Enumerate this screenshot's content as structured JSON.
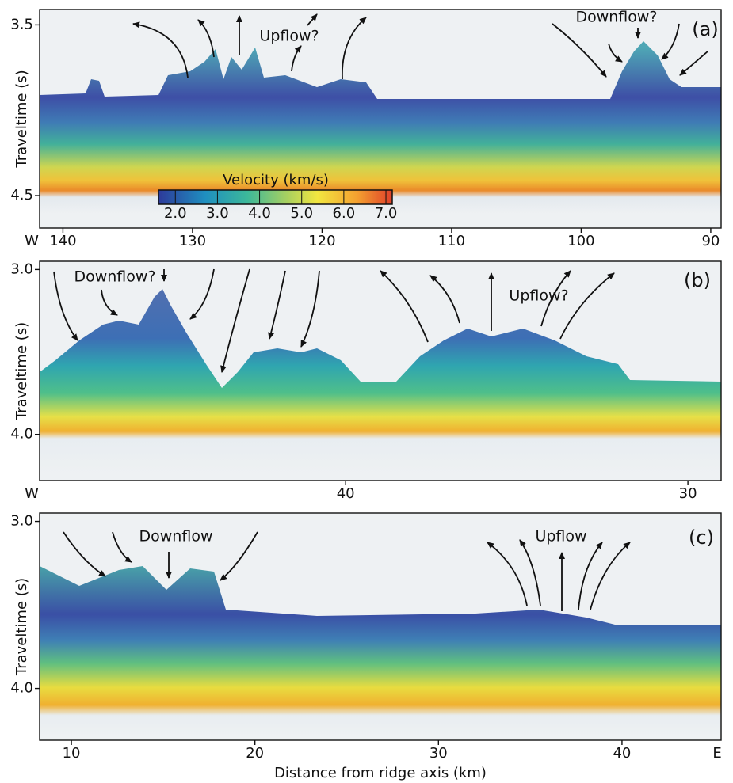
{
  "chart_data": [
    {
      "type": "seismic-section",
      "panel_label": "(a)",
      "y_label": "Traveltime (s)",
      "x_left_label": "W",
      "xlim": [
        141.8,
        89.2
      ],
      "xticks": [
        140,
        130,
        120,
        110,
        100,
        90
      ],
      "ylim": [
        3.41,
        4.69
      ],
      "y_reversed": true,
      "yticks": [
        3.5,
        4.5
      ],
      "annotations": [
        "Upflow?",
        "Downflow?"
      ],
      "colorbar": {
        "title": "Velocity (km/s)",
        "clim": [
          1.6,
          7.15
        ],
        "ticks": [
          {
            "value": 2,
            "label": "2.0"
          },
          {
            "value": 3,
            "label": "3.0"
          },
          {
            "value": 4,
            "label": "4.0"
          },
          {
            "value": 5,
            "label": "5.0"
          },
          {
            "value": 6,
            "label": "6.0"
          },
          {
            "value": 7,
            "label": "7.0"
          }
        ]
      }
    },
    {
      "type": "seismic-section",
      "panel_label": "(b)",
      "y_label": "Traveltime (s)",
      "x_left_label": "W",
      "xlim": [
        48.94,
        29.03
      ],
      "xticks": [
        40,
        30
      ],
      "ylim": [
        2.95,
        4.28
      ],
      "y_reversed": true,
      "yticks": [
        {
          "value": 3,
          "label": "3.0"
        },
        {
          "value": 4,
          "label": "4.0"
        }
      ],
      "annotations": [
        "Downflow?",
        "Upflow?"
      ]
    },
    {
      "type": "seismic-section",
      "panel_label": "(c)",
      "y_label": "Traveltime (s)",
      "x_right_label": "E",
      "x_label": "Distance from ridge axis (km)",
      "xlim": [
        8.27,
        45.4
      ],
      "xticks": [
        10,
        20,
        30,
        40
      ],
      "ylim": [
        2.95,
        4.31
      ],
      "y_reversed": true,
      "yticks": [
        {
          "value": 3,
          "label": "3.0"
        },
        {
          "value": 4,
          "label": "4.0"
        }
      ],
      "annotations": [
        "Downflow",
        "Upflow"
      ]
    }
  ]
}
